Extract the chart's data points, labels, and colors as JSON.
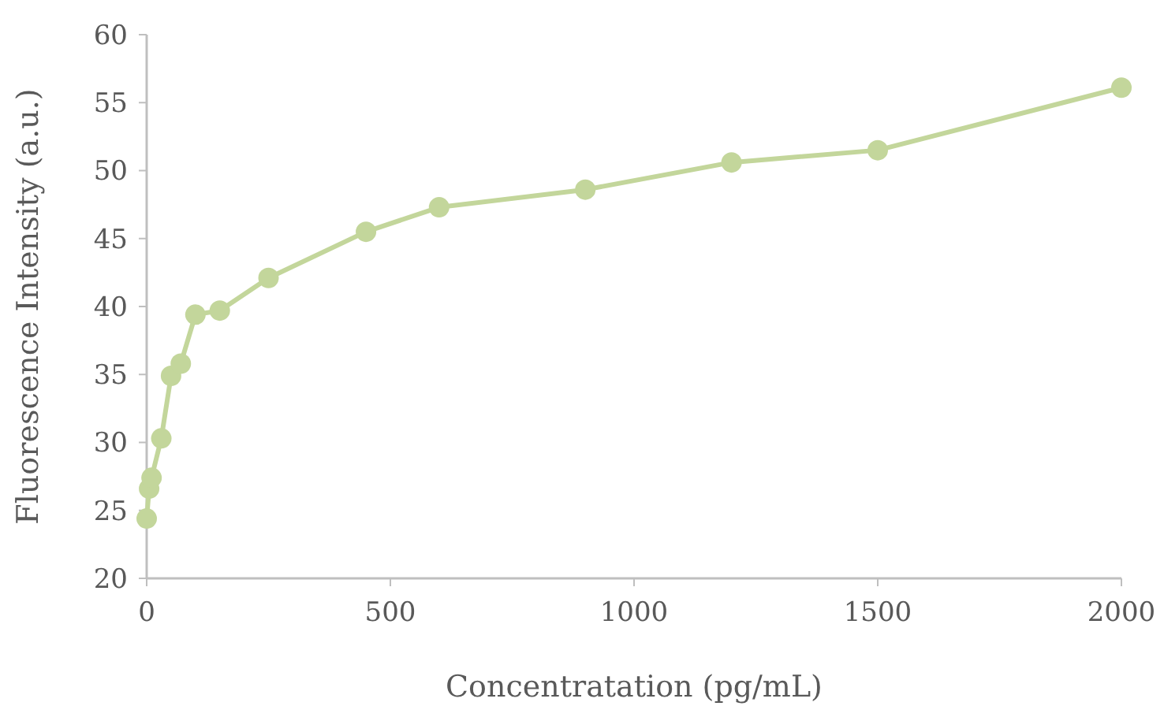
{
  "chart_data": {
    "type": "line",
    "xlabel": "Concentratation (pg/mL)",
    "ylabel": "Fluorescence Intensity (a.u.)",
    "x": [
      0,
      5,
      10,
      30,
      50,
      70,
      100,
      150,
      250,
      450,
      600,
      900,
      1200,
      1500,
      2000
    ],
    "series": [
      {
        "color": "#c3d69b",
        "values": [
          24.4,
          26.6,
          27.4,
          30.3,
          34.9,
          35.8,
          39.4,
          39.7,
          42.1,
          45.5,
          47.3,
          48.6,
          50.6,
          51.5,
          56.1
        ]
      }
    ],
    "xlim": [
      0,
      2000
    ],
    "xticks": [
      0,
      500,
      1000,
      1500,
      2000
    ],
    "ylim": [
      20,
      60
    ],
    "yticks": [
      20,
      25,
      30,
      35,
      40,
      45,
      50,
      55,
      60
    ],
    "grid": false,
    "marker": "circle",
    "line_style": "solid"
  }
}
